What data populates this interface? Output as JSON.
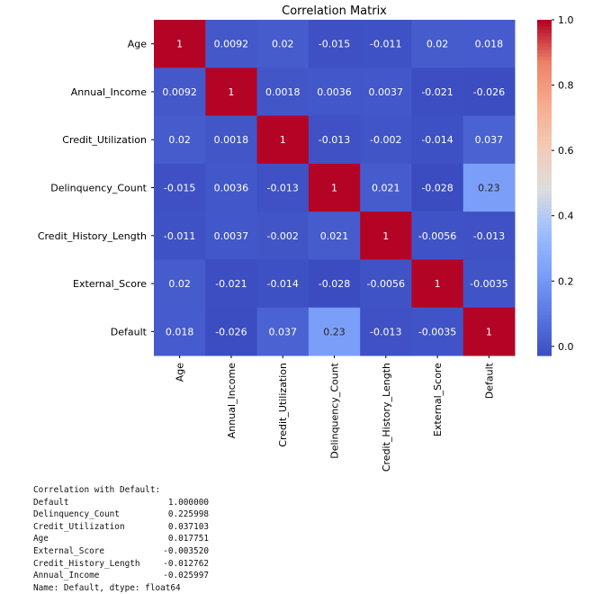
{
  "chart_data": {
    "type": "heatmap",
    "title": "Correlation Matrix",
    "labels": [
      "Age",
      "Annual_Income",
      "Credit_Utilization",
      "Delinquency_Count",
      "Credit_History_Length",
      "External_Score",
      "Default"
    ],
    "matrix": [
      [
        1,
        0.0092,
        0.02,
        -0.015,
        -0.011,
        0.02,
        0.018
      ],
      [
        0.0092,
        1,
        0.0018,
        0.0036,
        0.0037,
        -0.021,
        -0.026
      ],
      [
        0.02,
        0.0018,
        1,
        -0.013,
        -0.002,
        -0.014,
        0.037
      ],
      [
        -0.015,
        0.0036,
        -0.013,
        1,
        0.021,
        -0.028,
        0.23
      ],
      [
        -0.011,
        0.0037,
        -0.002,
        0.021,
        1,
        -0.0056,
        -0.013
      ],
      [
        0.02,
        -0.021,
        -0.014,
        -0.028,
        -0.0056,
        1,
        -0.0035
      ],
      [
        0.018,
        -0.026,
        0.037,
        0.23,
        -0.013,
        -0.0035,
        1
      ]
    ],
    "colormap": "coolwarm",
    "vmin": -0.028,
    "vmax": 1.0,
    "colorbar_ticks": [
      "0.0",
      "0.2",
      "0.4",
      "0.6",
      "0.8",
      "1.0"
    ],
    "colors": {
      "low": "#3b4cc0",
      "mid": "#dddddd",
      "high": "#b40426"
    }
  },
  "console": {
    "header": "Correlation with Default:",
    "rows": [
      {
        "name": "Default",
        "value": "1.000000"
      },
      {
        "name": "Delinquency_Count",
        "value": "0.225998"
      },
      {
        "name": "Credit_Utilization",
        "value": "0.037103"
      },
      {
        "name": "Age",
        "value": "0.017751"
      },
      {
        "name": "External_Score",
        "value": "-0.003520"
      },
      {
        "name": "Credit_History_Length",
        "value": "-0.012762"
      },
      {
        "name": "Annual_Income",
        "value": "-0.025997"
      }
    ],
    "footer": "Name: Default, dtype: float64"
  }
}
